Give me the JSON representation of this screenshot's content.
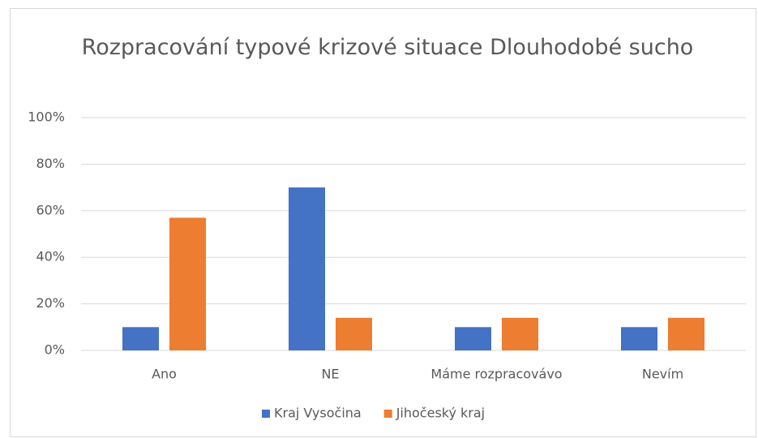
{
  "chart_data": {
    "type": "bar",
    "title": "Rozpracování typové krizové situace Dlouhodobé sucho",
    "categories": [
      "Ano",
      "NE",
      "Máme rozpracovávo",
      "Nevím"
    ],
    "series": [
      {
        "name": "Kraj Vysočina",
        "color": "#4472c4",
        "values": [
          10,
          70,
          10,
          10
        ]
      },
      {
        "name": "Jihočeský kraj",
        "color": "#ed7d31",
        "values": [
          57,
          14,
          14,
          14
        ]
      }
    ],
    "ylim": [
      0,
      100
    ],
    "yticks": [
      {
        "value": 0,
        "label": "0%"
      },
      {
        "value": 20,
        "label": "20%"
      },
      {
        "value": 40,
        "label": "40%"
      },
      {
        "value": 60,
        "label": "60%"
      },
      {
        "value": 80,
        "label": "80%"
      },
      {
        "value": 100,
        "label": "100%"
      }
    ],
    "grid": true,
    "legend": "bottom"
  }
}
